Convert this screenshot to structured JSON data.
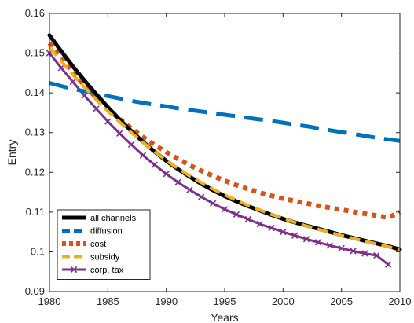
{
  "chart_data": {
    "type": "line",
    "title": "",
    "xlabel": "Years",
    "ylabel": "Entry",
    "xlim": [
      1980,
      2010
    ],
    "ylim": [
      0.09,
      0.16
    ],
    "xticks": [
      1980,
      1985,
      1990,
      1995,
      2000,
      2005,
      2010
    ],
    "yticks": [
      0.09,
      0.1,
      0.11,
      0.12,
      0.13,
      0.14,
      0.15,
      0.16
    ],
    "xtick_labels": [
      "1980",
      "1985",
      "1990",
      "1995",
      "2000",
      "2005",
      "2010"
    ],
    "ytick_labels": [
      "0.09",
      "0.1",
      "0.11",
      "0.12",
      "0.13",
      "0.14",
      "0.15",
      "0.16"
    ],
    "grid": false,
    "legend_position": "bottom-left",
    "x": [
      1980,
      1981,
      1982,
      1983,
      1984,
      1985,
      1986,
      1987,
      1988,
      1989,
      1990,
      1991,
      1992,
      1993,
      1994,
      1995,
      1996,
      1997,
      1998,
      1999,
      2000,
      2001,
      2002,
      2003,
      2004,
      2005,
      2006,
      2007,
      2008,
      2009,
      2010
    ],
    "series": [
      {
        "name": "all channels",
        "color": "#000000",
        "style": "solid",
        "values": [
          0.1545,
          0.1505,
          0.1467,
          0.1431,
          0.1397,
          0.1364,
          0.1333,
          0.1304,
          0.1277,
          0.1252,
          0.1229,
          0.1208,
          0.1189,
          0.1171,
          0.1155,
          0.114,
          0.1127,
          0.1115,
          0.1104,
          0.1093,
          0.1083,
          0.1074,
          0.1066,
          0.1058,
          0.105,
          0.1042,
          0.1035,
          0.1028,
          0.1021,
          0.1014,
          0.1006
        ]
      },
      {
        "name": "diffusion",
        "color": "#0072BD",
        "style": "dashed",
        "values": [
          0.1425,
          0.1417,
          0.141,
          0.1404,
          0.1398,
          0.1392,
          0.1386,
          0.138,
          0.1375,
          0.137,
          0.1366,
          0.1361,
          0.1357,
          0.1353,
          0.1349,
          0.1345,
          0.1341,
          0.1337,
          0.1333,
          0.1329,
          0.1325,
          0.132,
          0.1316,
          0.1311,
          0.1306,
          0.1301,
          0.1297,
          0.1292,
          0.1287,
          0.1283,
          0.1279
        ]
      },
      {
        "name": "cost",
        "color": "#D95319",
        "style": "dotted",
        "values": [
          0.1525,
          0.1488,
          0.1452,
          0.1418,
          0.1388,
          0.136,
          0.1334,
          0.1311,
          0.1289,
          0.1269,
          0.1251,
          0.1234,
          0.1218,
          0.1204,
          0.1191,
          0.1179,
          0.1168,
          0.1158,
          0.1149,
          0.1141,
          0.1134,
          0.1128,
          0.1122,
          0.1116,
          0.1111,
          0.1106,
          0.1101,
          0.1096,
          0.1091,
          0.1086,
          0.11
        ]
      },
      {
        "name": "subsidy",
        "color": "#EDB120",
        "style": "dashed",
        "values": [
          0.1515,
          0.148,
          0.1446,
          0.1414,
          0.1383,
          0.1354,
          0.1327,
          0.13,
          0.1276,
          0.1252,
          0.123,
          0.121,
          0.1191,
          0.1174,
          0.1158,
          0.1143,
          0.113,
          0.1117,
          0.1105,
          0.1094,
          0.1084,
          0.1074,
          0.1065,
          0.1057,
          0.1049,
          0.1041,
          0.1034,
          0.1027,
          0.102,
          0.1013,
          0.1006
        ]
      },
      {
        "name": "corp. tax",
        "color": "#7E2F8E",
        "style": "solid-x",
        "values": [
          0.15,
          0.1463,
          0.1428,
          0.1393,
          0.136,
          0.1328,
          0.1298,
          0.127,
          0.1243,
          0.1219,
          0.1196,
          0.1175,
          0.1156,
          0.1138,
          0.1122,
          0.1107,
          0.1094,
          0.1082,
          0.107,
          0.106,
          0.105,
          0.1041,
          0.1032,
          0.1024,
          0.1016,
          0.1009,
          0.1002,
          0.0996,
          0.0991,
          0.0968,
          null
        ]
      }
    ]
  }
}
